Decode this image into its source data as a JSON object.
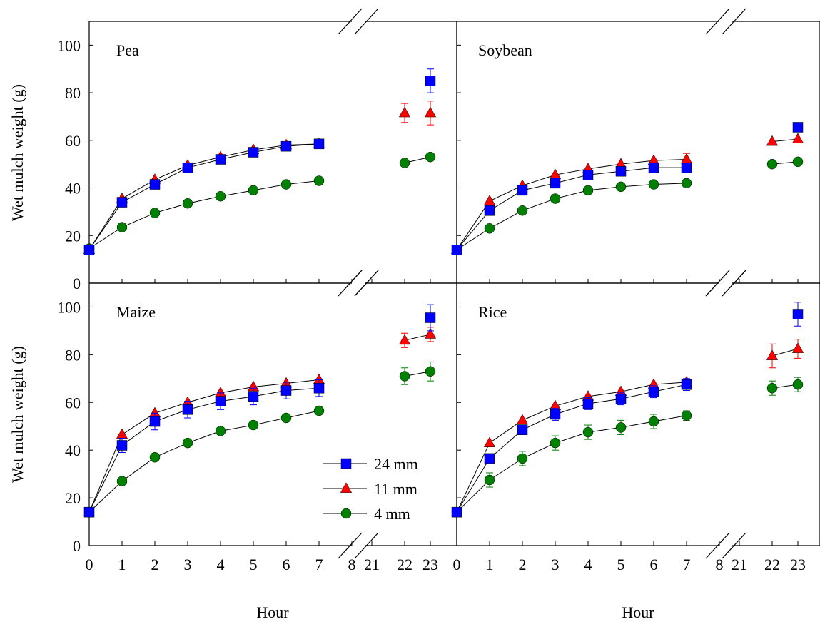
{
  "figure": {
    "ylabel": "Wet mulch weight (g)",
    "xlabel": "Hour",
    "legend": [
      {
        "label": "24 mm",
        "marker": "square",
        "color": "#0000FF"
      },
      {
        "label": "11 mm",
        "marker": "triangle",
        "color": "#FF0000"
      },
      {
        "label": "4 mm",
        "marker": "circle",
        "color": "#008000"
      }
    ]
  },
  "chart_data": [
    {
      "type": "scatter",
      "title": "Pea",
      "x_tick_labels": [
        "0",
        "1",
        "2",
        "3",
        "4",
        "5",
        "6",
        "7",
        "8",
        "21",
        "22",
        "23"
      ],
      "y_ticks": [
        0,
        20,
        40,
        60,
        80,
        100
      ],
      "ylim": [
        0,
        110
      ],
      "axis_break": "between 8 and 21",
      "series": [
        {
          "name": "24 mm",
          "color": "#0000FF",
          "x": [
            0,
            1,
            2,
            3,
            4,
            5,
            6,
            7,
            23
          ],
          "values": [
            14,
            34,
            41.5,
            48.5,
            52,
            55,
            57.5,
            58.5,
            85
          ],
          "err": [
            0,
            0,
            0,
            0,
            0,
            0,
            0,
            0,
            5
          ]
        },
        {
          "name": "11 mm",
          "color": "#FF0000",
          "x": [
            0,
            1,
            2,
            3,
            4,
            5,
            6,
            7,
            22,
            23
          ],
          "values": [
            14,
            35.5,
            43.5,
            49.5,
            53,
            56,
            58,
            58.5,
            71.5,
            71.5
          ],
          "err": [
            0,
            0,
            0,
            0,
            0,
            0,
            0,
            0,
            4,
            5
          ]
        },
        {
          "name": "4 mm",
          "color": "#008000",
          "x": [
            0,
            1,
            2,
            3,
            4,
            5,
            6,
            7,
            22,
            23
          ],
          "values": [
            14.5,
            23.5,
            29.5,
            33.5,
            36.5,
            39,
            41.5,
            43,
            50.5,
            53
          ],
          "err": [
            0,
            0,
            0,
            0,
            0,
            0,
            0,
            0,
            0,
            0
          ]
        }
      ]
    },
    {
      "type": "scatter",
      "title": "Soybean",
      "x_tick_labels": [
        "0",
        "1",
        "2",
        "3",
        "4",
        "5",
        "6",
        "7",
        "8",
        "21",
        "22",
        "23"
      ],
      "y_ticks": [
        0,
        20,
        40,
        60,
        80,
        100
      ],
      "ylim": [
        0,
        110
      ],
      "axis_break": "between 8 and 21",
      "series": [
        {
          "name": "24 mm",
          "color": "#0000FF",
          "x": [
            0,
            1,
            2,
            3,
            4,
            5,
            6,
            7,
            23
          ],
          "values": [
            14,
            30.5,
            39,
            42,
            45.5,
            47,
            48.5,
            48.5,
            65.5
          ],
          "err": [
            0,
            0,
            0,
            0,
            0,
            0,
            0,
            0,
            0
          ]
        },
        {
          "name": "11 mm",
          "color": "#FF0000",
          "x": [
            0,
            1,
            2,
            3,
            4,
            5,
            6,
            7,
            22,
            23
          ],
          "values": [
            14,
            34.5,
            41,
            45.5,
            48,
            50,
            51.5,
            52,
            59.5,
            60.5
          ],
          "err": [
            0,
            0,
            0,
            0,
            0,
            0,
            0,
            2.5,
            0,
            0
          ]
        },
        {
          "name": "4 mm",
          "color": "#008000",
          "x": [
            0,
            1,
            2,
            3,
            4,
            5,
            6,
            7,
            22,
            23
          ],
          "values": [
            14,
            23,
            30.5,
            35.5,
            39,
            40.5,
            41.5,
            42,
            50,
            51
          ],
          "err": [
            0,
            0,
            0,
            0,
            0,
            0,
            0,
            0,
            0,
            0
          ]
        }
      ]
    },
    {
      "type": "scatter",
      "title": "Maize",
      "x_tick_labels": [
        "0",
        "1",
        "2",
        "3",
        "4",
        "5",
        "6",
        "7",
        "8",
        "21",
        "22",
        "23"
      ],
      "y_ticks": [
        0,
        20,
        40,
        60,
        80,
        100
      ],
      "ylim": [
        0,
        110
      ],
      "axis_break": "between 8 and 21",
      "series": [
        {
          "name": "24 mm",
          "color": "#0000FF",
          "x": [
            0,
            1,
            2,
            3,
            4,
            5,
            6,
            7,
            23
          ],
          "values": [
            14,
            42,
            52,
            57,
            60.5,
            62.5,
            65,
            66,
            95.5
          ],
          "err": [
            0,
            3,
            3.5,
            3.5,
            3.5,
            3.5,
            3.5,
            3.5,
            5.5
          ]
        },
        {
          "name": "11 mm",
          "color": "#FF0000",
          "x": [
            0,
            1,
            2,
            3,
            4,
            5,
            6,
            7,
            22,
            23
          ],
          "values": [
            14,
            46.5,
            55.5,
            60,
            64,
            66.5,
            68,
            69.5,
            86,
            88.5
          ],
          "err": [
            0,
            0,
            0,
            0,
            0,
            0,
            0,
            0,
            3,
            3
          ]
        },
        {
          "name": "4 mm",
          "color": "#008000",
          "x": [
            0,
            1,
            2,
            3,
            4,
            5,
            6,
            7,
            22,
            23
          ],
          "values": [
            14,
            27,
            37,
            43,
            48,
            50.5,
            53.5,
            56.5,
            71,
            73
          ],
          "err": [
            0,
            0,
            0,
            0,
            0,
            0,
            0,
            0,
            3.5,
            4
          ]
        }
      ]
    },
    {
      "type": "scatter",
      "title": "Rice",
      "x_tick_labels": [
        "0",
        "1",
        "2",
        "3",
        "4",
        "5",
        "6",
        "7",
        "8",
        "21",
        "22",
        "23"
      ],
      "y_ticks": [
        0,
        20,
        40,
        60,
        80,
        100
      ],
      "ylim": [
        0,
        110
      ],
      "axis_break": "between 8 and 21",
      "series": [
        {
          "name": "24 mm",
          "color": "#0000FF",
          "x": [
            0,
            1,
            2,
            3,
            4,
            5,
            6,
            7,
            23
          ],
          "values": [
            14,
            36.5,
            48.5,
            55,
            59.5,
            61.5,
            64.5,
            67.5,
            97
          ],
          "err": [
            0,
            0,
            0,
            2.5,
            2.5,
            2.5,
            2.5,
            2.5,
            5
          ]
        },
        {
          "name": "11 mm",
          "color": "#FF0000",
          "x": [
            0,
            1,
            2,
            3,
            4,
            5,
            6,
            7,
            22,
            23
          ],
          "values": [
            14,
            43,
            52.5,
            58.5,
            62.5,
            64.5,
            67.5,
            68.5,
            79.5,
            82.5
          ],
          "err": [
            0,
            0,
            0,
            0,
            0,
            0,
            0,
            0,
            5,
            4
          ]
        },
        {
          "name": "4 mm",
          "color": "#008000",
          "x": [
            0,
            1,
            2,
            3,
            4,
            5,
            6,
            7,
            22,
            23
          ],
          "values": [
            14,
            27.5,
            36.5,
            43,
            47.5,
            49.5,
            52,
            54.5,
            66,
            67.5
          ],
          "err": [
            0,
            3,
            3,
            3,
            3,
            3,
            3,
            2,
            3,
            3
          ]
        }
      ]
    }
  ]
}
